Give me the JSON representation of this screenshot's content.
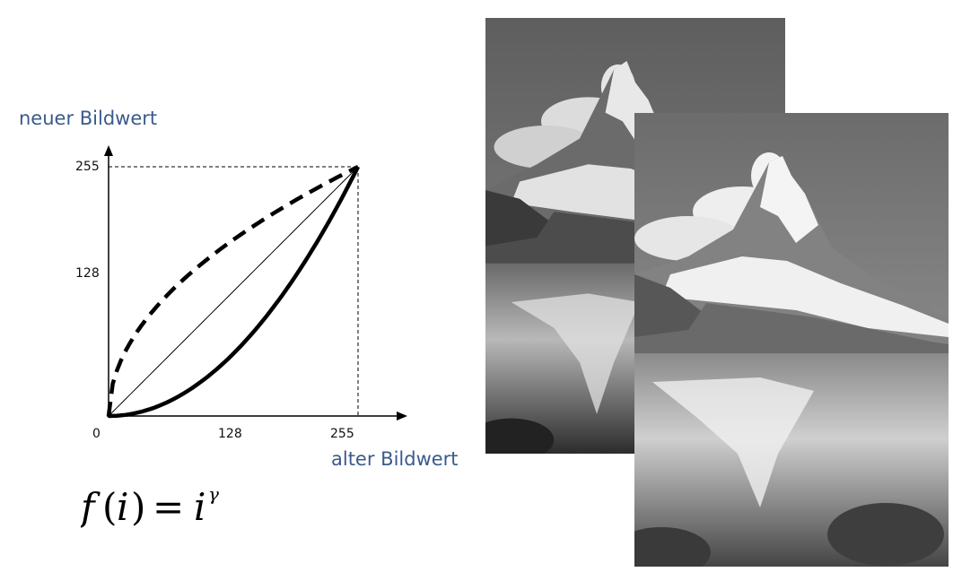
{
  "diagram": {
    "y_axis_title": "neuer Bildwert",
    "x_axis_title": "alter Bildwert",
    "y_ticks": [
      "255",
      "128"
    ],
    "x_ticks": [
      "0",
      "128",
      "255"
    ],
    "formula": {
      "func": "f",
      "arg": "i",
      "base": "i",
      "exponent": "γ"
    },
    "curves": [
      {
        "style": "dashed",
        "gamma": 0.5
      },
      {
        "style": "thin-solid",
        "gamma": 1.0
      },
      {
        "style": "thick-solid",
        "gamma": 2.0
      }
    ],
    "axis_range": [
      0,
      255
    ]
  },
  "photos": [
    {
      "subject": "mountain-lake",
      "tone": "darker"
    },
    {
      "subject": "mountain-lake",
      "tone": "lighter"
    }
  ]
}
